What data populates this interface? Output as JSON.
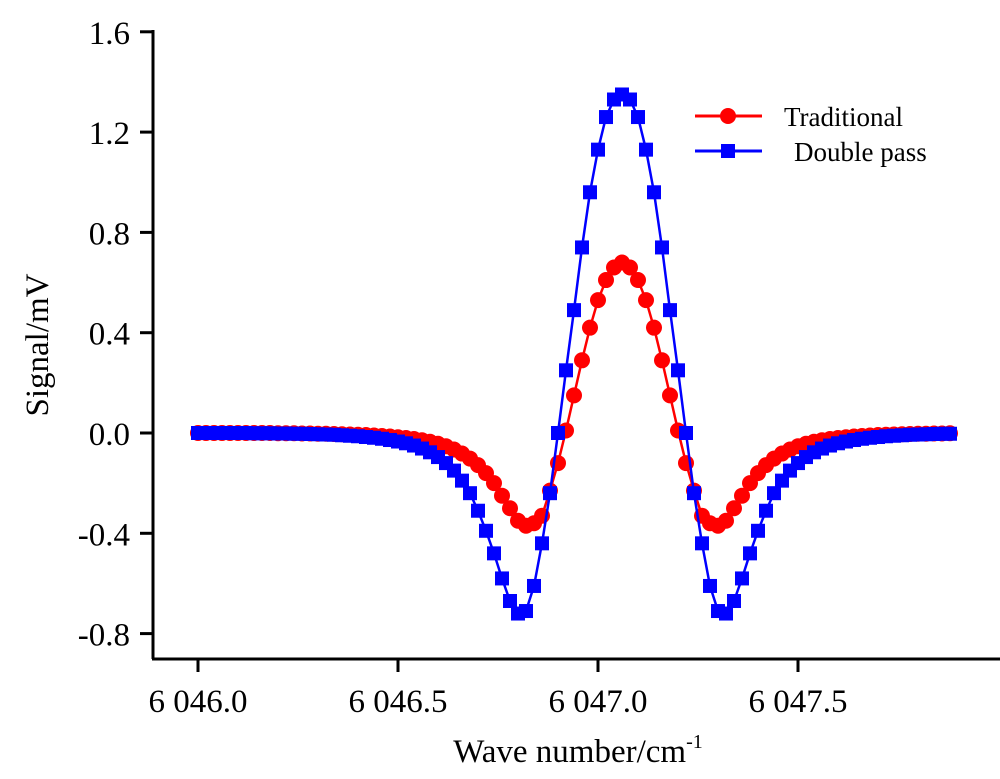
{
  "chart_data": {
    "type": "line",
    "title": "",
    "xlabel": "Wave number/cm",
    "xlabel_superscript": "-1",
    "ylabel": "Signal/mV",
    "xlim": [
      6045.89,
      6047.99
    ],
    "ylim": [
      -0.9,
      1.6
    ],
    "grid": false,
    "legend_position": "top-right",
    "x_ticks": [
      6046.0,
      6046.5,
      6047.0,
      6047.5
    ],
    "x_tick_labels": [
      "6 046.0",
      "6 046.5",
      "6 047.0",
      "6 047.5"
    ],
    "y_ticks": [
      1.6,
      1.2,
      0.8,
      0.4,
      0.0,
      -0.4,
      -0.8
    ],
    "y_tick_labels": [
      "1.6",
      "1.2",
      "0.8",
      "0.4",
      "0.0",
      "-0.4",
      "-0.8"
    ],
    "x_start": 6046.0,
    "x_step": 0.02,
    "series": [
      {
        "name": "Traditional",
        "color": "#ff0000",
        "marker": "circle",
        "values": [
          0.0,
          0.0,
          0.0,
          0.0,
          0.0,
          0.0,
          0.0,
          0.0,
          0.0,
          0.0,
          -0.001,
          -0.001,
          -0.001,
          -0.002,
          -0.002,
          -0.003,
          -0.003,
          -0.004,
          -0.005,
          -0.006,
          -0.007,
          -0.008,
          -0.01,
          -0.012,
          -0.014,
          -0.017,
          -0.02,
          -0.024,
          -0.029,
          -0.035,
          -0.043,
          -0.053,
          -0.066,
          -0.082,
          -0.102,
          -0.128,
          -0.16,
          -0.2,
          -0.25,
          -0.3,
          -0.35,
          -0.37,
          -0.36,
          -0.33,
          -0.23,
          -0.12,
          0.01,
          0.15,
          0.29,
          0.42,
          0.53,
          0.61,
          0.66,
          0.68,
          0.66,
          0.61,
          0.53,
          0.42,
          0.29,
          0.15,
          0.01,
          -0.12,
          -0.23,
          -0.33,
          -0.36,
          -0.37,
          -0.35,
          -0.3,
          -0.25,
          -0.2,
          -0.16,
          -0.128,
          -0.102,
          -0.082,
          -0.066,
          -0.053,
          -0.043,
          -0.035,
          -0.029,
          -0.024,
          -0.02,
          -0.017,
          -0.014,
          -0.012,
          -0.01,
          -0.008,
          -0.007,
          -0.006,
          -0.005,
          -0.004,
          -0.003,
          -0.003,
          -0.002,
          -0.002,
          -0.001
        ]
      },
      {
        "name": "Double pass",
        "color": "#0000ff",
        "marker": "square",
        "values": [
          0.0,
          0.0,
          0.0,
          0.0,
          0.0,
          0.0,
          0.0,
          -0.001,
          -0.001,
          -0.001,
          -0.002,
          -0.002,
          -0.003,
          -0.003,
          -0.004,
          -0.005,
          -0.006,
          -0.007,
          -0.009,
          -0.011,
          -0.013,
          -0.016,
          -0.019,
          -0.023,
          -0.028,
          -0.034,
          -0.041,
          -0.05,
          -0.062,
          -0.077,
          -0.096,
          -0.12,
          -0.15,
          -0.19,
          -0.24,
          -0.31,
          -0.39,
          -0.48,
          -0.58,
          -0.67,
          -0.72,
          -0.71,
          -0.61,
          -0.44,
          -0.24,
          0.0,
          0.25,
          0.49,
          0.74,
          0.96,
          1.13,
          1.26,
          1.33,
          1.35,
          1.33,
          1.26,
          1.13,
          0.96,
          0.74,
          0.49,
          0.25,
          0.0,
          -0.24,
          -0.44,
          -0.61,
          -0.71,
          -0.72,
          -0.67,
          -0.58,
          -0.48,
          -0.39,
          -0.31,
          -0.24,
          -0.19,
          -0.15,
          -0.12,
          -0.096,
          -0.077,
          -0.062,
          -0.05,
          -0.041,
          -0.034,
          -0.028,
          -0.023,
          -0.019,
          -0.016,
          -0.013,
          -0.011,
          -0.009,
          -0.007,
          -0.006,
          -0.005,
          -0.004,
          -0.003,
          -0.003
        ]
      }
    ]
  }
}
